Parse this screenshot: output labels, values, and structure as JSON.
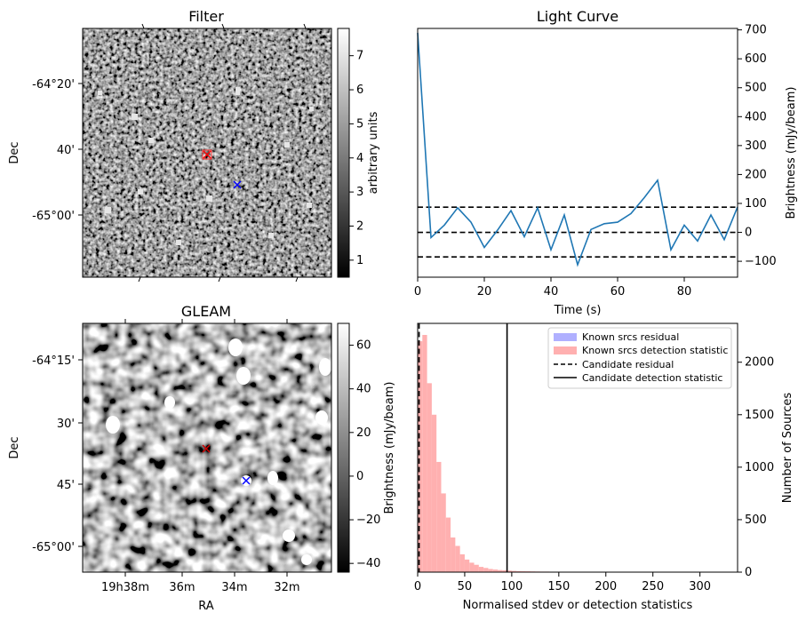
{
  "panels": {
    "filter": {
      "title": "Filter",
      "ylabel": "Dec",
      "dec_ticks": [
        "-64°20'",
        "40'",
        "-65°00'"
      ],
      "colorbar": {
        "label": "arbitrary units",
        "ticks": [
          "1",
          "2",
          "3",
          "4",
          "5",
          "6",
          "7"
        ],
        "range": [
          0.5,
          7.8
        ]
      },
      "markers": [
        {
          "name": "candidate",
          "symbol": "x",
          "color": "#ff0000"
        },
        {
          "name": "nearest-known-source",
          "symbol": "x",
          "color": "#0000ff"
        }
      ]
    },
    "gleam": {
      "title": "GLEAM",
      "ylabel": "Dec",
      "xlabel": "RA",
      "dec_ticks": [
        "-64°15'",
        "30'",
        "45'",
        "-65°00'"
      ],
      "ra_ticks": [
        "19h38m",
        "36m",
        "34m",
        "32m"
      ],
      "colorbar": {
        "label": "Brightness (mJy/beam)",
        "ticks": [
          "60",
          "40",
          "20",
          "0",
          "−20",
          "−40"
        ],
        "range": [
          -44,
          70
        ]
      },
      "markers": [
        {
          "name": "candidate",
          "symbol": "x",
          "color": "#cc0000"
        },
        {
          "name": "nearest-known-source",
          "symbol": "x",
          "color": "#0000ff"
        }
      ]
    }
  },
  "chart_data": [
    {
      "type": "line",
      "title": "Light Curve",
      "xlabel": "Time (s)",
      "ylabel": "Brightness (mJy/beam)",
      "xlim": [
        0,
        96
      ],
      "ylim": [
        -155,
        705
      ],
      "xticks": [
        "0",
        "20",
        "40",
        "60",
        "80"
      ],
      "yticks": [
        "−100",
        "0",
        "100",
        "200",
        "300",
        "400",
        "500",
        "600",
        "700"
      ],
      "series": [
        {
          "color": "#1f77b4",
          "x": [
            0,
            4,
            8,
            12,
            16,
            20,
            24,
            28,
            32,
            36,
            40,
            44,
            48,
            52,
            56,
            60,
            64,
            68,
            72,
            76,
            80,
            84,
            88,
            92,
            96
          ],
          "y": [
            690,
            -18,
            25,
            85,
            35,
            -52,
            8,
            75,
            -15,
            85,
            -60,
            60,
            -112,
            10,
            30,
            35,
            65,
            120,
            180,
            -60,
            25,
            -30,
            60,
            -25,
            88
          ]
        }
      ],
      "hlines": [
        {
          "y": 87,
          "style": "dashed"
        },
        {
          "y": 0,
          "style": "dashed"
        },
        {
          "y": -85,
          "style": "dashed"
        }
      ]
    },
    {
      "type": "bar",
      "title": "",
      "xlabel": "Normalised stdev or detection statistics",
      "ylabel": "Number of Sources",
      "xlim": [
        0,
        340
      ],
      "ylim": [
        0,
        2370
      ],
      "xticks": [
        "0",
        "50",
        "100",
        "150",
        "200",
        "250",
        "300"
      ],
      "yticks": [
        "0",
        "500",
        "1000",
        "1500",
        "2000"
      ],
      "legend_position": "top-right",
      "bin_width": 5,
      "series": [
        {
          "name": "Known srcs residual",
          "color": "#b0b0ff",
          "bin_starts": [
            0
          ],
          "values": [
            0
          ]
        },
        {
          "name": "Known srcs detection statistic",
          "color": "#ffb0b0",
          "bin_starts": [
            0,
            5,
            10,
            15,
            20,
            25,
            30,
            35,
            40,
            45,
            50,
            55,
            60,
            65,
            70,
            75,
            80,
            85,
            90,
            95,
            100,
            105,
            110,
            115,
            120,
            125,
            130,
            135,
            140,
            145,
            150,
            155,
            160,
            165,
            170,
            175,
            180,
            185,
            190,
            195,
            200,
            205,
            210,
            215,
            220,
            225,
            230,
            235,
            240,
            245,
            250,
            255,
            260,
            265,
            270,
            275,
            280,
            285,
            290,
            295,
            300,
            305,
            310,
            315,
            320,
            325,
            330
          ],
          "values": [
            2200,
            2260,
            1800,
            1500,
            1050,
            750,
            520,
            330,
            250,
            170,
            120,
            90,
            70,
            50,
            40,
            30,
            25,
            20,
            18,
            15,
            12,
            10,
            9,
            8,
            7,
            6,
            5,
            5,
            4,
            4,
            3,
            3,
            3,
            2,
            2,
            2,
            2,
            2,
            1,
            1,
            1,
            1,
            1,
            1,
            1,
            1,
            1,
            1,
            1,
            1,
            1,
            1,
            1,
            1,
            1,
            1,
            1,
            1,
            1,
            1,
            1,
            1,
            1,
            1,
            1,
            1,
            1
          ]
        },
        {
          "name": "Candidate residual",
          "style": "dashed",
          "x": 1.5
        },
        {
          "name": "Candidate detection statistic",
          "style": "solid",
          "x": 95
        }
      ]
    }
  ]
}
